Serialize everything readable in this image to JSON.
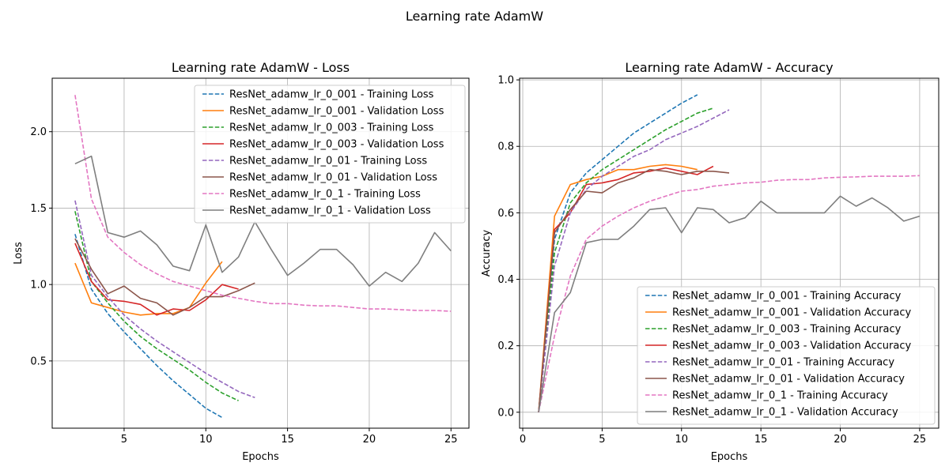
{
  "figure": {
    "suptitle": "Learning rate AdamW"
  },
  "chart_data": [
    {
      "type": "line",
      "title": "Learning rate AdamW - Loss",
      "xlabel": "Epochs",
      "ylabel": "Loss",
      "xlim": [
        0.6,
        26.1
      ],
      "ylim": [
        0.06,
        2.35
      ],
      "xticks": [
        5,
        10,
        15,
        20,
        25
      ],
      "yticks": [
        0.5,
        1.0,
        1.5,
        2.0
      ],
      "xtick_labels": [
        "5",
        "10",
        "15",
        "20",
        "25"
      ],
      "ytick_labels": [
        "0.5",
        "1.0",
        "1.5",
        "2.0"
      ],
      "grid": true,
      "legend_position": "top-right",
      "series": [
        {
          "name": "ResNet_adamw_lr_0_001 - Training Loss",
          "style": "dashed",
          "color": "#1f77b4",
          "x": [
            2,
            3,
            4,
            5,
            6,
            7,
            8,
            9,
            10,
            11
          ],
          "y": [
            1.33,
            0.97,
            0.81,
            0.69,
            0.58,
            0.47,
            0.37,
            0.28,
            0.19,
            0.13
          ]
        },
        {
          "name": "ResNet_adamw_lr_0_001 - Validation Loss",
          "style": "solid",
          "color": "#ff7f0e",
          "x": [
            2,
            3,
            4,
            5,
            6,
            7,
            8,
            9,
            10,
            11
          ],
          "y": [
            1.14,
            0.88,
            0.85,
            0.82,
            0.8,
            0.81,
            0.81,
            0.85,
            1.01,
            1.15
          ]
        },
        {
          "name": "ResNet_adamw_lr_0_003 - Training Loss",
          "style": "dashed",
          "color": "#2ca02c",
          "x": [
            2,
            3,
            4,
            5,
            6,
            7,
            8,
            9,
            10,
            11,
            12
          ],
          "y": [
            1.48,
            1.02,
            0.88,
            0.76,
            0.66,
            0.58,
            0.51,
            0.44,
            0.36,
            0.29,
            0.24
          ]
        },
        {
          "name": "ResNet_adamw_lr_0_003 - Validation Loss",
          "style": "solid",
          "color": "#d62728",
          "x": [
            2,
            3,
            4,
            5,
            6,
            7,
            8,
            9,
            10,
            11,
            12
          ],
          "y": [
            1.27,
            1.02,
            0.9,
            0.89,
            0.87,
            0.8,
            0.84,
            0.83,
            0.9,
            1.0,
            0.97
          ]
        },
        {
          "name": "ResNet_adamw_lr_0_01 - Training Loss",
          "style": "dashed",
          "color": "#9467bd",
          "x": [
            2,
            3,
            4,
            5,
            6,
            7,
            8,
            9,
            10,
            11,
            12,
            13
          ],
          "y": [
            1.55,
            1.06,
            0.92,
            0.8,
            0.71,
            0.63,
            0.56,
            0.49,
            0.42,
            0.36,
            0.3,
            0.26
          ]
        },
        {
          "name": "ResNet_adamw_lr_0_01 - Validation Loss",
          "style": "solid",
          "color": "#8c564b",
          "x": [
            2,
            3,
            4,
            5,
            6,
            7,
            8,
            9,
            10,
            11,
            12,
            13
          ],
          "y": [
            1.3,
            1.1,
            0.94,
            0.99,
            0.91,
            0.88,
            0.8,
            0.85,
            0.92,
            0.92,
            0.96,
            1.01
          ]
        },
        {
          "name": "ResNet_adamw_lr_0_1 - Training Loss",
          "style": "dashed",
          "color": "#e377c2",
          "x": [
            2,
            3,
            4,
            5,
            6,
            7,
            8,
            9,
            10,
            11,
            12,
            13,
            14,
            15,
            16,
            17,
            18,
            19,
            20,
            21,
            22,
            23,
            24,
            25
          ],
          "y": [
            2.24,
            1.56,
            1.31,
            1.21,
            1.13,
            1.07,
            1.02,
            0.99,
            0.96,
            0.93,
            0.91,
            0.89,
            0.875,
            0.875,
            0.865,
            0.86,
            0.86,
            0.85,
            0.84,
            0.84,
            0.835,
            0.83,
            0.83,
            0.825
          ]
        },
        {
          "name": "ResNet_adamw_lr_0_1 - Validation Loss",
          "style": "solid",
          "color": "#7f7f7f",
          "x": [
            2,
            3,
            4,
            5,
            6,
            7,
            8,
            9,
            10,
            11,
            12,
            13,
            14,
            15,
            16,
            17,
            18,
            19,
            20,
            21,
            22,
            23,
            24,
            25
          ],
          "y": [
            1.79,
            1.84,
            1.34,
            1.31,
            1.35,
            1.26,
            1.12,
            1.09,
            1.39,
            1.08,
            1.18,
            1.41,
            1.23,
            1.06,
            1.14,
            1.23,
            1.23,
            1.13,
            0.99,
            1.08,
            1.02,
            1.14,
            1.34,
            1.22
          ]
        }
      ]
    },
    {
      "type": "line",
      "title": "Learning rate AdamW - Accuracy",
      "xlabel": "Epochs",
      "ylabel": "Accuracy",
      "xlim": [
        -0.2,
        26.2
      ],
      "ylim": [
        -0.048,
        1.005
      ],
      "xticks": [
        0,
        5,
        10,
        15,
        20,
        25
      ],
      "yticks": [
        0.0,
        0.2,
        0.4,
        0.6,
        0.8,
        1.0
      ],
      "xtick_labels": [
        "0",
        "5",
        "10",
        "15",
        "20",
        "25"
      ],
      "ytick_labels": [
        "0.0",
        "0.2",
        "0.4",
        "0.6",
        "0.8",
        "1.0"
      ],
      "grid": true,
      "legend_position": "bottom-right",
      "series": [
        {
          "name": "ResNet_adamw_lr_0_001 - Training Accuracy",
          "style": "dashed",
          "color": "#1f77b4",
          "x": [
            1,
            2,
            3,
            4,
            5,
            6,
            7,
            8,
            9,
            10,
            11
          ],
          "y": [
            0.0,
            0.52,
            0.66,
            0.72,
            0.76,
            0.8,
            0.84,
            0.87,
            0.9,
            0.93,
            0.955
          ]
        },
        {
          "name": "ResNet_adamw_lr_0_001 - Validation Accuracy",
          "style": "solid",
          "color": "#ff7f0e",
          "x": [
            1,
            2,
            3,
            4,
            5,
            6,
            7,
            8,
            9,
            10,
            11
          ],
          "y": [
            0.0,
            0.59,
            0.685,
            0.7,
            0.71,
            0.73,
            0.73,
            0.74,
            0.745,
            0.74,
            0.73
          ]
        },
        {
          "name": "ResNet_adamw_lr_0_003 - Training Accuracy",
          "style": "dashed",
          "color": "#2ca02c",
          "x": [
            1,
            2,
            3,
            4,
            5,
            6,
            7,
            8,
            9,
            10,
            11,
            12
          ],
          "y": [
            0.0,
            0.48,
            0.63,
            0.69,
            0.73,
            0.76,
            0.79,
            0.82,
            0.85,
            0.875,
            0.9,
            0.915
          ]
        },
        {
          "name": "ResNet_adamw_lr_0_003 - Validation Accuracy",
          "style": "solid",
          "color": "#d62728",
          "x": [
            1,
            2,
            3,
            4,
            5,
            6,
            7,
            8,
            9,
            10,
            11,
            12
          ],
          "y": [
            0.0,
            0.55,
            0.6,
            0.685,
            0.69,
            0.7,
            0.72,
            0.725,
            0.735,
            0.725,
            0.715,
            0.74
          ]
        },
        {
          "name": "ResNet_adamw_lr_0_01 - Training Accuracy",
          "style": "dashed",
          "color": "#9467bd",
          "x": [
            1,
            2,
            3,
            4,
            5,
            6,
            7,
            8,
            9,
            10,
            11,
            12,
            13
          ],
          "y": [
            0.0,
            0.44,
            0.6,
            0.67,
            0.71,
            0.74,
            0.77,
            0.79,
            0.82,
            0.84,
            0.86,
            0.885,
            0.91
          ]
        },
        {
          "name": "ResNet_adamw_lr_0_01 - Validation Accuracy",
          "style": "solid",
          "color": "#8c564b",
          "x": [
            1,
            2,
            3,
            4,
            5,
            6,
            7,
            8,
            9,
            10,
            11,
            12,
            13
          ],
          "y": [
            0.0,
            0.54,
            0.61,
            0.665,
            0.66,
            0.69,
            0.705,
            0.73,
            0.725,
            0.715,
            0.725,
            0.725,
            0.72
          ]
        },
        {
          "name": "ResNet_adamw_lr_0_1 - Training Accuracy",
          "style": "dashed",
          "color": "#e377c2",
          "x": [
            1,
            2,
            3,
            4,
            5,
            6,
            7,
            8,
            9,
            10,
            11,
            12,
            13,
            14,
            15,
            16,
            17,
            18,
            19,
            20,
            21,
            22,
            23,
            24,
            25
          ],
          "y": [
            0.0,
            0.23,
            0.41,
            0.52,
            0.56,
            0.59,
            0.615,
            0.635,
            0.65,
            0.665,
            0.67,
            0.68,
            0.685,
            0.69,
            0.692,
            0.698,
            0.7,
            0.7,
            0.705,
            0.707,
            0.708,
            0.71,
            0.71,
            0.71,
            0.712
          ]
        },
        {
          "name": "ResNet_adamw_lr_0_1 - Validation Accuracy",
          "style": "solid",
          "color": "#7f7f7f",
          "x": [
            1,
            2,
            3,
            4,
            5,
            6,
            7,
            8,
            9,
            10,
            11,
            12,
            13,
            14,
            15,
            16,
            17,
            18,
            19,
            20,
            21,
            22,
            23,
            24,
            25
          ],
          "y": [
            0.0,
            0.3,
            0.36,
            0.51,
            0.52,
            0.52,
            0.56,
            0.61,
            0.615,
            0.54,
            0.615,
            0.61,
            0.57,
            0.585,
            0.635,
            0.6,
            0.6,
            0.6,
            0.6,
            0.65,
            0.62,
            0.645,
            0.615,
            0.575,
            0.59
          ]
        }
      ]
    }
  ]
}
